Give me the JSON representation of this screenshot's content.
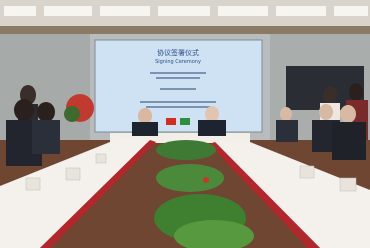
{
  "screen": {
    "title": "协议签署仪式",
    "subtitle": "Signing Ceremony"
  }
}
